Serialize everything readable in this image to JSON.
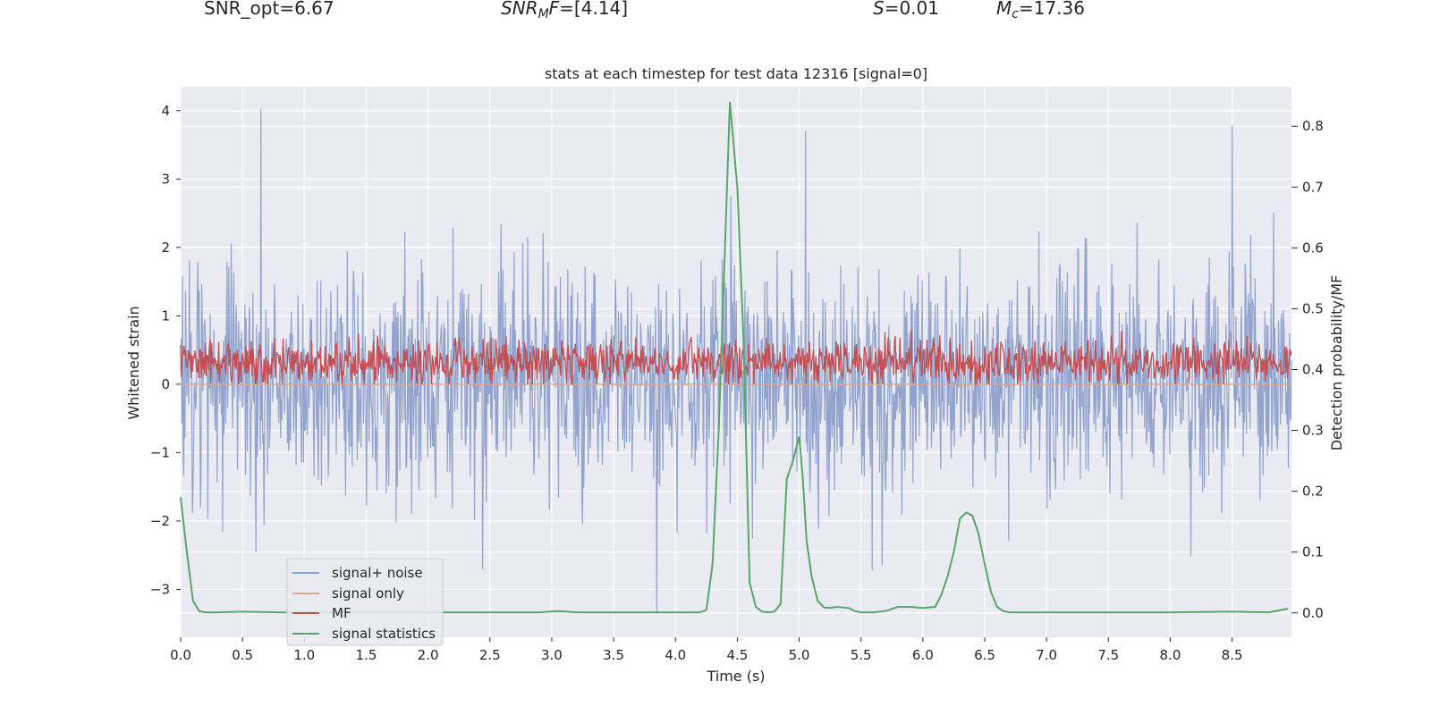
{
  "header": {
    "snr_opt": "SNR_opt=6.67",
    "snr_mf": "SNR",
    "snr_mf_sub": "M",
    "snr_mf_f": "F",
    "snr_mf_val": "=[4.14]",
    "s_sym": "S",
    "s_val": "=0.01",
    "mc_sym": "M",
    "mc_sub": "c",
    "mc_val": "=17.36"
  },
  "colors": {
    "signal_noise": "#8da0cb",
    "signal_only": "#e8a383",
    "mf": "#c44e52",
    "statistics": "#55a868",
    "plot_bg": "#eaeaf2",
    "grid": "#ffffff"
  },
  "chart_data": {
    "type": "line",
    "title": "stats at each timestep for test data 12316 [signal=0]",
    "xlabel": "Time (s)",
    "ylabel": "Whitened strain",
    "ylabel_right": "Detection probability/MF",
    "xlim": [
      0.0,
      8.98
    ],
    "ylim": [
      -3.7,
      4.35
    ],
    "ylim_right": [
      -0.04,
      0.865
    ],
    "x_ticks": [
      "0.0",
      "0.5",
      "1.0",
      "1.5",
      "2.0",
      "2.5",
      "3.0",
      "3.5",
      "4.0",
      "4.5",
      "5.0",
      "5.5",
      "6.0",
      "6.5",
      "7.0",
      "7.5",
      "8.0",
      "8.5"
    ],
    "y_ticks": [
      "4",
      "3",
      "2",
      "1",
      "0",
      "−1",
      "−2",
      "−3"
    ],
    "y_ticks_right": [
      "0.8",
      "0.7",
      "0.6",
      "0.5",
      "0.4",
      "0.3",
      "0.2",
      "0.1",
      "0.0"
    ],
    "legend": [
      "signal+ noise",
      "signal only",
      "MF",
      "signal statistics"
    ],
    "legend_loc": "lower-left",
    "grid": true,
    "series": [
      {
        "name": "signal+ noise",
        "axis": "left",
        "description": "dense whitened noise, roughly gaussian, spanning about -3.3 to 4.0",
        "notable_peaks": [
          [
            0.65,
            4.02
          ],
          [
            4.45,
            2.75
          ],
          [
            8.5,
            3.78
          ],
          [
            5.05,
            3.7
          ],
          [
            3.85,
            -3.35
          ]
        ]
      },
      {
        "name": "signal only",
        "axis": "left",
        "x": [
          0.0,
          8.98
        ],
        "y": [
          0.0,
          0.0
        ]
      },
      {
        "name": "MF",
        "axis": "left",
        "description": "matched-filter output hovering between about 0.0 and 0.9",
        "range": [
          0.0,
          1.0
        ]
      },
      {
        "name": "signal statistics",
        "axis": "right",
        "x": [
          0.0,
          0.05,
          0.1,
          0.15,
          0.2,
          0.3,
          0.5,
          0.8,
          1.0,
          2.0,
          2.5,
          2.9,
          3.05,
          3.2,
          4.0,
          4.2,
          4.25,
          4.3,
          4.35,
          4.4,
          4.44,
          4.5,
          4.55,
          4.6,
          4.65,
          4.7,
          4.75,
          4.8,
          4.85,
          4.9,
          4.95,
          5.0,
          5.03,
          5.06,
          5.1,
          5.15,
          5.2,
          5.25,
          5.3,
          5.4,
          5.45,
          5.5,
          5.6,
          5.7,
          5.8,
          5.9,
          6.0,
          6.1,
          6.15,
          6.2,
          6.25,
          6.3,
          6.35,
          6.4,
          6.45,
          6.5,
          6.55,
          6.6,
          6.65,
          6.7,
          6.75,
          6.8,
          6.9,
          7.0,
          7.5,
          8.0,
          8.5,
          8.8,
          8.9,
          8.95
        ],
        "y": [
          0.19,
          0.1,
          0.02,
          0.003,
          0.001,
          0.001,
          0.002,
          0.001,
          0.001,
          0.001,
          0.001,
          0.001,
          0.003,
          0.001,
          0.001,
          0.001,
          0.005,
          0.08,
          0.3,
          0.6,
          0.84,
          0.7,
          0.45,
          0.05,
          0.01,
          0.002,
          0.001,
          0.002,
          0.015,
          0.22,
          0.25,
          0.29,
          0.22,
          0.12,
          0.06,
          0.02,
          0.009,
          0.008,
          0.01,
          0.008,
          0.003,
          0.001,
          0.001,
          0.003,
          0.01,
          0.01,
          0.008,
          0.01,
          0.03,
          0.06,
          0.1,
          0.155,
          0.165,
          0.16,
          0.13,
          0.08,
          0.035,
          0.01,
          0.003,
          0.001,
          0.001,
          0.001,
          0.001,
          0.001,
          0.001,
          0.001,
          0.002,
          0.001,
          0.005,
          0.007
        ]
      }
    ]
  }
}
